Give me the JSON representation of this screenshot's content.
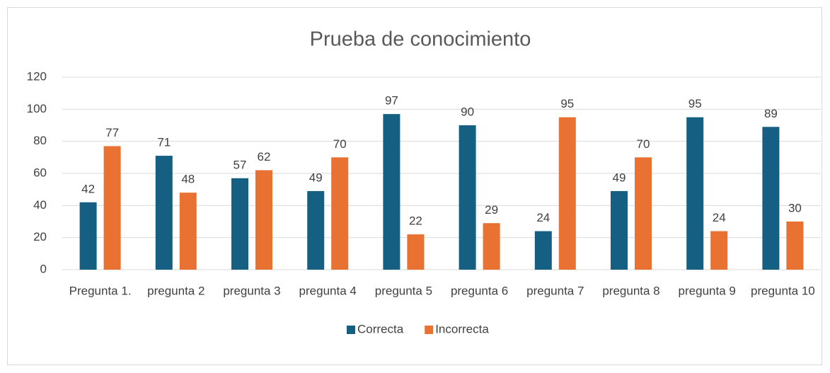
{
  "chart_data": {
    "type": "bar",
    "title": "Prueba de conocimiento",
    "categories": [
      "Pregunta 1.",
      "pregunta 2",
      "pregunta 3",
      "pregunta 4",
      "pregunta 5",
      "pregunta 6",
      "pregunta 7",
      "pregunta 8",
      "pregunta 9",
      "pregunta 10"
    ],
    "series": [
      {
        "name": "Correcta",
        "color": "#156082",
        "values": [
          42,
          71,
          57,
          49,
          97,
          90,
          24,
          49,
          95,
          89
        ]
      },
      {
        "name": "Incorrecta",
        "color": "#e97132",
        "values": [
          77,
          48,
          62,
          70,
          22,
          29,
          95,
          70,
          24,
          30
        ]
      }
    ],
    "ylim": [
      0,
      120
    ],
    "yticks": [
      0,
      20,
      40,
      60,
      80,
      100,
      120
    ],
    "grid": true,
    "legend": "bottom"
  }
}
